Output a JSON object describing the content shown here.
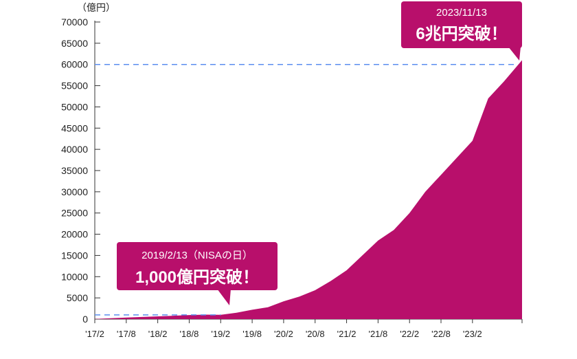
{
  "chart_data": {
    "type": "area",
    "unit_label": "（億円）",
    "ylim": [
      0,
      70000
    ],
    "yticks": [
      0,
      5000,
      10000,
      15000,
      20000,
      25000,
      30000,
      35000,
      40000,
      45000,
      50000,
      55000,
      60000,
      65000,
      70000
    ],
    "xticks": [
      "'17/2",
      "'17/8",
      "'18/2",
      "'18/8",
      "'19/2",
      "'19/8",
      "'20/2",
      "'20/8",
      "'21/2",
      "'21/8",
      "'22/2",
      "'22/8",
      "'23/2"
    ],
    "x": [
      "2017-02",
      "2017-05",
      "2017-08",
      "2017-11",
      "2018-02",
      "2018-05",
      "2018-08",
      "2018-11",
      "2019-02",
      "2019-05",
      "2019-08",
      "2019-11",
      "2020-02",
      "2020-05",
      "2020-08",
      "2020-11",
      "2021-02",
      "2021-05",
      "2021-08",
      "2021-11",
      "2022-02",
      "2022-05",
      "2022-08",
      "2022-11",
      "2023-02",
      "2023-05",
      "2023-08",
      "2023-11"
    ],
    "values": [
      50,
      200,
      350,
      500,
      650,
      800,
      950,
      1050,
      1000,
      1500,
      2200,
      2800,
      4200,
      5300,
      6800,
      9000,
      11500,
      15000,
      18500,
      21000,
      25000,
      30000,
      34000,
      38000,
      42000,
      52000,
      56000,
      61000
    ],
    "reference_line": {
      "value": 60000,
      "color": "#5b8def"
    },
    "reference_line_low": {
      "value": 1000,
      "color": "#5b8def"
    },
    "fill_color": "#b80f6b"
  },
  "callouts": {
    "top": {
      "date": "2023/11/13",
      "headline": "6兆円突破！"
    },
    "bottom": {
      "date": "2019/2/13（NISAの日）",
      "headline": "1,000億円突破！"
    }
  }
}
